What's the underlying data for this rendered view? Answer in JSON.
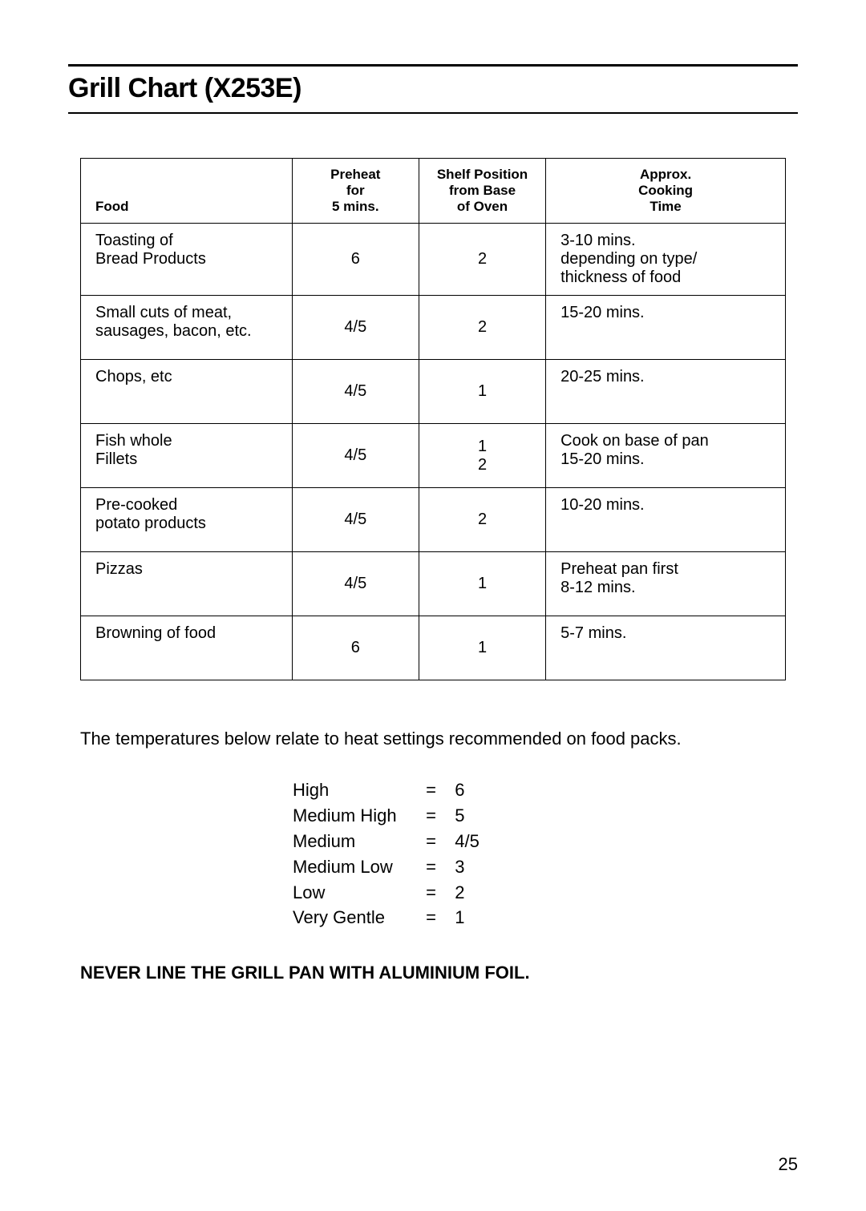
{
  "title": "Grill Chart  (X253E)",
  "table": {
    "headers": {
      "food": "Food",
      "preheat": "Preheat\nfor\n5 mins.",
      "shelf": "Shelf Position\nfrom Base\nof Oven",
      "time": "Approx.\nCooking\nTime"
    },
    "rows": [
      {
        "food": "Toasting of\nBread Products",
        "preheat": "6",
        "shelf": "2",
        "time": "3-10 mins.\ndepending on type/\nthickness of food"
      },
      {
        "food": "Small cuts of meat,\nsausages, bacon, etc.",
        "preheat": "4/5",
        "shelf": "2",
        "time": "15-20 mins."
      },
      {
        "food": "Chops, etc",
        "preheat": "4/5",
        "shelf": "1",
        "time": "20-25 mins."
      },
      {
        "food": "Fish whole\nFillets",
        "preheat": "4/5",
        "shelf": "1\n2",
        "time": "Cook on base of pan\n15-20 mins."
      },
      {
        "food": "Pre-cooked\npotato products",
        "preheat": "4/5",
        "shelf": "2",
        "time": "10-20 mins."
      },
      {
        "food": "Pizzas",
        "preheat": "4/5",
        "shelf": "1",
        "time": "Preheat pan first\n8-12 mins."
      },
      {
        "food": "Browning of food",
        "preheat": "6",
        "shelf": "1",
        "time": "5-7 mins."
      }
    ]
  },
  "paragraph": "The temperatures below relate to heat settings recommended on food packs.",
  "heat_settings": [
    {
      "label": "High",
      "value": "6"
    },
    {
      "label": "Medium High",
      "value": "5"
    },
    {
      "label": "Medium",
      "value": "4/5"
    },
    {
      "label": "Medium Low",
      "value": "3"
    },
    {
      "label": "Low",
      "value": "2"
    },
    {
      "label": "Very Gentle",
      "value": "1"
    }
  ],
  "warning": "NEVER LINE THE GRILL PAN WITH ALUMINIUM FOIL.",
  "page_number": "25",
  "styling": {
    "background_color": "#ffffff",
    "text_color": "#000000",
    "border_color": "#000000",
    "title_fontsize": 34,
    "body_fontsize": 22,
    "header_fontsize": 17
  }
}
